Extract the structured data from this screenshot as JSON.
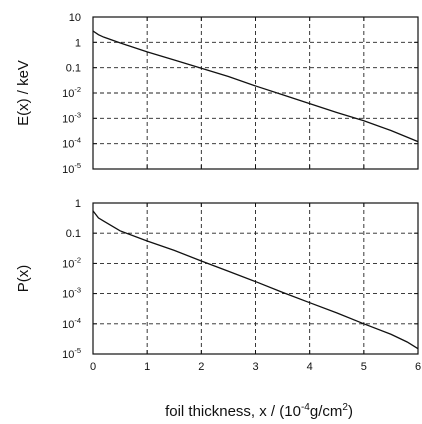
{
  "chart_data": [
    {
      "type": "line",
      "ylabel": "E(x)  /  keV",
      "yscale": "log",
      "xlim": [
        0,
        6
      ],
      "ylim": [
        1e-05,
        10
      ],
      "grid": true,
      "x_ticks": [
        "0",
        "1",
        "2",
        "3",
        "4",
        "5",
        "6"
      ],
      "y_ticks": [
        {
          "base": "10",
          "exp": ""
        },
        {
          "base": "1",
          "exp": ""
        },
        {
          "base": "0.1",
          "exp": ""
        },
        {
          "base": "10",
          "exp": "-2"
        },
        {
          "base": "10",
          "exp": "-3"
        },
        {
          "base": "10",
          "exp": "-4"
        },
        {
          "base": "10",
          "exp": "-5"
        }
      ],
      "series": [
        {
          "x": [
            0,
            0.1,
            0.2,
            0.5,
            1,
            1.5,
            2,
            2.5,
            3,
            3.5,
            4,
            4.5,
            5,
            5.5,
            6
          ],
          "y": [
            2.8,
            2.0,
            1.6,
            0.95,
            0.42,
            0.2,
            0.095,
            0.045,
            0.019,
            0.0085,
            0.0038,
            0.0017,
            0.0008,
            0.00033,
            0.00012
          ]
        }
      ]
    },
    {
      "type": "line",
      "ylabel": "P(x)",
      "yscale": "log",
      "xlim": [
        0,
        6
      ],
      "ylim": [
        1e-05,
        1
      ],
      "grid": true,
      "x_ticks": [
        "0",
        "1",
        "2",
        "3",
        "4",
        "5",
        "6"
      ],
      "xlabel": {
        "pre": "foil thickness, x / (10",
        "sup1": "-4",
        "mid": "g/cm",
        "sup2": "2",
        "post": ")"
      },
      "y_ticks": [
        {
          "base": "1",
          "exp": ""
        },
        {
          "base": "0.1",
          "exp": ""
        },
        {
          "base": "10",
          "exp": "-2"
        },
        {
          "base": "10",
          "exp": "-3"
        },
        {
          "base": "10",
          "exp": "-4"
        },
        {
          "base": "10",
          "exp": "-5"
        }
      ],
      "series": [
        {
          "x": [
            0,
            0.05,
            0.1,
            0.2,
            0.5,
            1,
            1.5,
            2,
            2.5,
            3,
            3.5,
            4,
            4.5,
            5,
            5.5,
            5.8,
            6
          ],
          "y": [
            0.55,
            0.42,
            0.32,
            0.25,
            0.12,
            0.055,
            0.027,
            0.012,
            0.0055,
            0.0025,
            0.0011,
            0.0005,
            0.00023,
            0.0001,
            4.5e-05,
            2.5e-05,
            1.5e-05
          ]
        }
      ]
    }
  ]
}
